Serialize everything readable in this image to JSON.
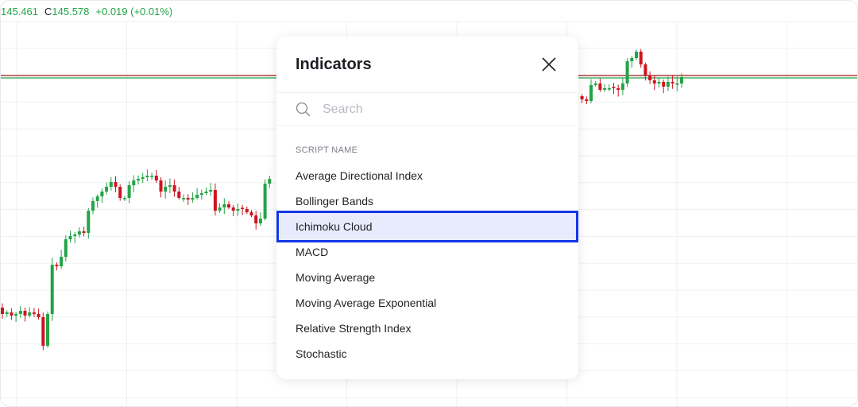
{
  "legend": {
    "open_value": "145.461",
    "close_label": "C",
    "close_value": "145.578",
    "change": "+0.019 (+0.01%)"
  },
  "colors": {
    "up": "#22a447",
    "down": "#d0141f",
    "grid": "#eef0f2",
    "highlight_border": "#1437e6",
    "highlight_bg": "#e8ebfb"
  },
  "price_lines": [
    {
      "price": 145.59,
      "color": "#a01818"
    },
    {
      "price": 145.575,
      "color": "#22a447"
    }
  ],
  "candles_left": [
    144.09,
    144.1,
    144.08,
    144.09,
    144.11,
    144.08,
    144.1,
    144.09,
    144.07,
    143.89,
    144.09,
    144.4,
    144.39,
    144.45,
    144.56,
    144.58,
    144.59,
    144.61,
    144.6,
    144.74,
    144.8,
    144.83,
    144.86,
    144.89,
    144.92,
    144.89,
    144.82,
    144.82,
    144.9,
    144.93,
    144.94,
    144.95,
    144.96,
    144.96,
    144.93,
    144.86,
    144.89,
    144.9,
    144.86,
    144.82,
    144.82,
    144.81,
    144.82,
    144.84,
    144.85,
    144.86,
    144.87,
    144.74,
    144.76,
    144.78,
    144.76,
    144.74,
    144.75,
    144.75,
    144.73,
    144.71,
    144.66,
    144.69,
    144.91,
    144.94
  ],
  "candles_right": [
    145.44,
    145.43,
    145.53,
    145.54,
    145.5,
    145.51,
    145.51,
    145.51,
    145.5,
    145.54,
    145.68,
    145.7,
    145.74,
    145.66,
    145.59,
    145.56,
    145.54,
    145.55,
    145.52,
    145.55,
    145.54,
    145.54,
    145.58
  ],
  "modal": {
    "title": "Indicators",
    "close_icon": "close-icon",
    "search_icon": "search-icon",
    "search_placeholder": "Search",
    "search_value": "",
    "section_label": "SCRIPT NAME",
    "selected_index": 2,
    "items": [
      {
        "label": "Average Directional Index"
      },
      {
        "label": "Bollinger Bands"
      },
      {
        "label": "Ichimoku Cloud"
      },
      {
        "label": "MACD"
      },
      {
        "label": "Moving Average"
      },
      {
        "label": "Moving Average Exponential"
      },
      {
        "label": "Relative Strength Index"
      },
      {
        "label": "Stochastic"
      }
    ]
  }
}
